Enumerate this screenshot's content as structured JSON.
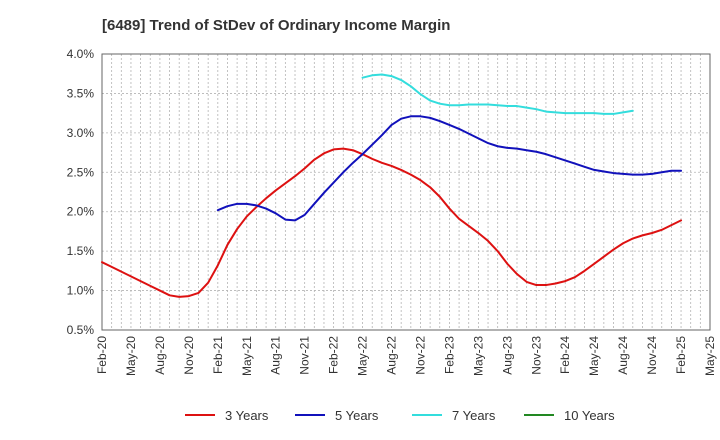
{
  "chart_data": {
    "type": "line",
    "title": "[6489]  Trend of StDev of Ordinary Income Margin",
    "xlabel": "",
    "ylabel": "",
    "x_start": "Feb-20",
    "x_ticks": [
      "Feb-20",
      "May-20",
      "Aug-20",
      "Nov-20",
      "Feb-21",
      "May-21",
      "Aug-21",
      "Nov-21",
      "Feb-22",
      "May-22",
      "Aug-22",
      "Nov-22",
      "Feb-23",
      "May-23",
      "Aug-23",
      "Nov-23",
      "Feb-24",
      "May-24",
      "Aug-24",
      "Nov-24",
      "Feb-25",
      "May-25"
    ],
    "y_ticks": [
      "0.5%",
      "1.0%",
      "1.5%",
      "2.0%",
      "2.5%",
      "3.0%",
      "3.5%",
      "4.0%"
    ],
    "ylim": [
      0.5,
      4.0
    ],
    "grid": true,
    "legend_position": "bottom",
    "series": [
      {
        "name": "3 Years",
        "color": "#dd1111",
        "points": [
          [
            "Feb-20",
            1.36
          ],
          [
            "Mar-20",
            1.3
          ],
          [
            "Apr-20",
            1.24
          ],
          [
            "May-20",
            1.18
          ],
          [
            "Jun-20",
            1.12
          ],
          [
            "Jul-20",
            1.06
          ],
          [
            "Aug-20",
            1.0
          ],
          [
            "Sep-20",
            0.94
          ],
          [
            "Oct-20",
            0.92
          ],
          [
            "Nov-20",
            0.93
          ],
          [
            "Dec-20",
            0.97
          ],
          [
            "Jan-21",
            1.1
          ],
          [
            "Feb-21",
            1.32
          ],
          [
            "Mar-21",
            1.58
          ],
          [
            "Apr-21",
            1.78
          ],
          [
            "May-21",
            1.94
          ],
          [
            "Jun-21",
            2.06
          ],
          [
            "Jul-21",
            2.17
          ],
          [
            "Aug-21",
            2.27
          ],
          [
            "Sep-21",
            2.36
          ],
          [
            "Oct-21",
            2.45
          ],
          [
            "Nov-21",
            2.55
          ],
          [
            "Dec-21",
            2.66
          ],
          [
            "Jan-22",
            2.74
          ],
          [
            "Feb-22",
            2.79
          ],
          [
            "Mar-22",
            2.8
          ],
          [
            "Apr-22",
            2.78
          ],
          [
            "May-22",
            2.73
          ],
          [
            "Jun-22",
            2.67
          ],
          [
            "Jul-22",
            2.62
          ],
          [
            "Aug-22",
            2.58
          ],
          [
            "Sep-22",
            2.53
          ],
          [
            "Oct-22",
            2.47
          ],
          [
            "Nov-22",
            2.4
          ],
          [
            "Dec-22",
            2.31
          ],
          [
            "Jan-23",
            2.19
          ],
          [
            "Feb-23",
            2.04
          ],
          [
            "Mar-23",
            1.91
          ],
          [
            "Apr-23",
            1.82
          ],
          [
            "May-23",
            1.73
          ],
          [
            "Jun-23",
            1.63
          ],
          [
            "Jul-23",
            1.5
          ],
          [
            "Aug-23",
            1.34
          ],
          [
            "Sep-23",
            1.21
          ],
          [
            "Oct-23",
            1.11
          ],
          [
            "Nov-23",
            1.07
          ],
          [
            "Dec-23",
            1.07
          ],
          [
            "Jan-24",
            1.09
          ],
          [
            "Feb-24",
            1.12
          ],
          [
            "Mar-24",
            1.17
          ],
          [
            "Apr-24",
            1.25
          ],
          [
            "May-24",
            1.34
          ],
          [
            "Jun-24",
            1.43
          ],
          [
            "Jul-24",
            1.52
          ],
          [
            "Aug-24",
            1.6
          ],
          [
            "Sep-24",
            1.66
          ],
          [
            "Oct-24",
            1.7
          ],
          [
            "Nov-24",
            1.73
          ],
          [
            "Dec-24",
            1.77
          ],
          [
            "Jan-25",
            1.83
          ],
          [
            "Feb-25",
            1.89
          ]
        ]
      },
      {
        "name": "5 Years",
        "color": "#1111bb",
        "points": [
          [
            "Feb-21",
            2.02
          ],
          [
            "Mar-21",
            2.07
          ],
          [
            "Apr-21",
            2.1
          ],
          [
            "May-21",
            2.1
          ],
          [
            "Jun-21",
            2.08
          ],
          [
            "Jul-21",
            2.04
          ],
          [
            "Aug-21",
            1.98
          ],
          [
            "Sep-21",
            1.9
          ],
          [
            "Oct-21",
            1.89
          ],
          [
            "Nov-21",
            1.96
          ],
          [
            "Dec-21",
            2.1
          ],
          [
            "Jan-22",
            2.24
          ],
          [
            "Feb-22",
            2.37
          ],
          [
            "Mar-22",
            2.5
          ],
          [
            "Apr-22",
            2.62
          ],
          [
            "May-22",
            2.73
          ],
          [
            "Jun-22",
            2.85
          ],
          [
            "Jul-22",
            2.97
          ],
          [
            "Aug-22",
            3.1
          ],
          [
            "Sep-22",
            3.18
          ],
          [
            "Oct-22",
            3.21
          ],
          [
            "Nov-22",
            3.21
          ],
          [
            "Dec-22",
            3.19
          ],
          [
            "Jan-23",
            3.15
          ],
          [
            "Feb-23",
            3.1
          ],
          [
            "Mar-23",
            3.05
          ],
          [
            "Apr-23",
            2.99
          ],
          [
            "May-23",
            2.93
          ],
          [
            "Jun-23",
            2.87
          ],
          [
            "Jul-23",
            2.83
          ],
          [
            "Aug-23",
            2.81
          ],
          [
            "Sep-23",
            2.8
          ],
          [
            "Oct-23",
            2.78
          ],
          [
            "Nov-23",
            2.76
          ],
          [
            "Dec-23",
            2.73
          ],
          [
            "Jan-24",
            2.69
          ],
          [
            "Feb-24",
            2.65
          ],
          [
            "Mar-24",
            2.61
          ],
          [
            "Apr-24",
            2.57
          ],
          [
            "May-24",
            2.53
          ],
          [
            "Jun-24",
            2.51
          ],
          [
            "Jul-24",
            2.49
          ],
          [
            "Aug-24",
            2.48
          ],
          [
            "Sep-24",
            2.47
          ],
          [
            "Oct-24",
            2.47
          ],
          [
            "Nov-24",
            2.48
          ],
          [
            "Dec-24",
            2.5
          ],
          [
            "Jan-25",
            2.52
          ],
          [
            "Feb-25",
            2.52
          ]
        ]
      },
      {
        "name": "7 Years",
        "color": "#33dddd",
        "points": [
          [
            "May-22",
            3.7
          ],
          [
            "Jun-22",
            3.73
          ],
          [
            "Jul-22",
            3.74
          ],
          [
            "Aug-22",
            3.72
          ],
          [
            "Sep-22",
            3.67
          ],
          [
            "Oct-22",
            3.59
          ],
          [
            "Nov-22",
            3.49
          ],
          [
            "Dec-22",
            3.41
          ],
          [
            "Jan-23",
            3.37
          ],
          [
            "Feb-23",
            3.35
          ],
          [
            "Mar-23",
            3.35
          ],
          [
            "Apr-23",
            3.36
          ],
          [
            "May-23",
            3.36
          ],
          [
            "Jun-23",
            3.36
          ],
          [
            "Jul-23",
            3.35
          ],
          [
            "Aug-23",
            3.34
          ],
          [
            "Sep-23",
            3.34
          ],
          [
            "Oct-23",
            3.32
          ],
          [
            "Nov-23",
            3.3
          ],
          [
            "Dec-23",
            3.27
          ],
          [
            "Jan-24",
            3.26
          ],
          [
            "Feb-24",
            3.25
          ],
          [
            "Mar-24",
            3.25
          ],
          [
            "Apr-24",
            3.25
          ],
          [
            "May-24",
            3.25
          ],
          [
            "Jun-24",
            3.24
          ],
          [
            "Jul-24",
            3.24
          ],
          [
            "Aug-24",
            3.26
          ],
          [
            "Sep-24",
            3.28
          ]
        ]
      },
      {
        "name": "10 Years",
        "color": "#228822",
        "points": []
      }
    ]
  }
}
